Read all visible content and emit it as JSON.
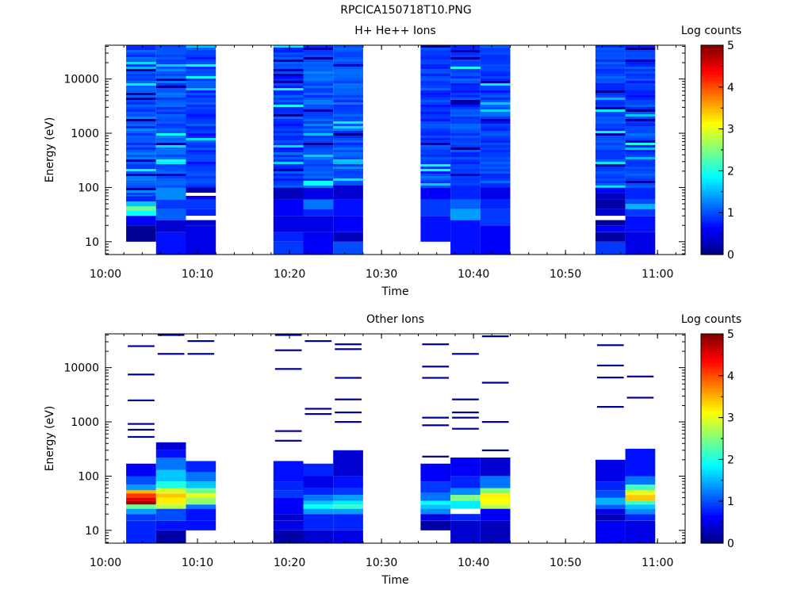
{
  "title": "RPCICA150718T10.PNG",
  "colorbar": {
    "label": "Log counts",
    "range": [
      0,
      5
    ],
    "ticks": [
      0,
      1,
      2,
      3,
      4,
      5
    ]
  },
  "chart_data": [
    {
      "type": "heatmap",
      "title": "H+ He++ Ions",
      "xlabel": "Time",
      "ylabel": "Energy (eV)",
      "xlim": [
        "10:00",
        "11:03"
      ],
      "x_ticks": [
        "10:00",
        "10:10",
        "10:20",
        "10:30",
        "10:40",
        "10:50",
        "11:00"
      ],
      "yscale": "log",
      "ylim": [
        5.8,
        42000
      ],
      "y_ticks": [
        10,
        100,
        1000,
        10000
      ],
      "z_label": "Log counts",
      "zlim": [
        0,
        5
      ],
      "columns": [
        {
          "start": "10:02:15",
          "end": "10:05:30",
          "e_min": 10,
          "low": [
            [
              10,
              20,
              0.1
            ],
            [
              20,
              30,
              0.6
            ],
            [
              30,
              38,
              1.9
            ],
            [
              38,
              45,
              2.4
            ],
            [
              45,
              55,
              1.6
            ],
            [
              55,
              70,
              0.8
            ]
          ],
          "bg": [
            1.0,
            1.2
          ]
        },
        {
          "start": "10:05:30",
          "end": "10:08:45",
          "e_min": 5.8,
          "low": [
            [
              5.8,
              15,
              0.7
            ],
            [
              15,
              25,
              0.4
            ],
            [
              25,
              40,
              1.1
            ],
            [
              40,
              60,
              0.9
            ],
            [
              60,
              100,
              1.3
            ]
          ],
          "bg": [
            1.0,
            1.2
          ]
        },
        {
          "start": "10:08:45",
          "end": "10:12:00",
          "e_min": 5.8,
          "low": [
            [
              5.8,
              20,
              0.5
            ],
            [
              20,
              25,
              0.4
            ],
            [
              30,
              40,
              0.8
            ],
            [
              40,
              60,
              0.9
            ],
            [
              60,
              70,
              0.6
            ],
            [
              80,
              100,
              0.2
            ]
          ],
          "bg": [
            0.9,
            1.1
          ]
        },
        {
          "start": "10:18:15",
          "end": "10:21:30",
          "e_min": 5.8,
          "low": [
            [
              5.8,
              10,
              0.9
            ],
            [
              10,
              15,
              0.8
            ],
            [
              15,
              30,
              0.5
            ],
            [
              30,
              60,
              0.6
            ],
            [
              60,
              100,
              0.3
            ]
          ],
          "bg": [
            0.9,
            1.1
          ]
        },
        {
          "start": "10:21:30",
          "end": "10:24:45",
          "e_min": 5.8,
          "low": [
            [
              5.8,
              15,
              0.6
            ],
            [
              15,
              30,
              0.5
            ],
            [
              30,
              40,
              0.8
            ],
            [
              40,
              60,
              1.2
            ],
            [
              60,
              100,
              0.5
            ]
          ],
          "bg": [
            1.0,
            1.2
          ]
        },
        {
          "start": "10:24:45",
          "end": "10:28:00",
          "e_min": 5.8,
          "low": [
            [
              5.8,
              10,
              1.0
            ],
            [
              10,
              15,
              0.3
            ],
            [
              15,
              30,
              0.6
            ],
            [
              30,
              60,
              0.7
            ],
            [
              60,
              110,
              0.4
            ]
          ],
          "bg": [
            1.0,
            1.2
          ]
        },
        {
          "start": "10:34:15",
          "end": "10:37:30",
          "e_min": 10,
          "low": [
            [
              10,
              30,
              0.7
            ],
            [
              30,
              60,
              0.9
            ],
            [
              60,
              100,
              0.6
            ]
          ],
          "bg": [
            0.9,
            1.1
          ]
        },
        {
          "start": "10:37:30",
          "end": "10:40:45",
          "e_min": 5.8,
          "low": [
            [
              5.8,
              25,
              0.7
            ],
            [
              25,
              40,
              1.4
            ],
            [
              40,
              60,
              1.1
            ],
            [
              60,
              100,
              0.8
            ]
          ],
          "bg": [
            0.9,
            1.1
          ]
        },
        {
          "start": "10:40:45",
          "end": "10:44:00",
          "e_min": 5.8,
          "low": [
            [
              5.8,
              20,
              0.6
            ],
            [
              20,
              40,
              0.9
            ],
            [
              40,
              60,
              0.8
            ],
            [
              60,
              100,
              0.5
            ]
          ],
          "bg": [
            0.9,
            1.1
          ]
        },
        {
          "start": "10:53:15",
          "end": "10:56:30",
          "e_min": 5.8,
          "low": [
            [
              5.8,
              10,
              0.9
            ],
            [
              10,
              15,
              0.2
            ],
            [
              15,
              20,
              0.6
            ],
            [
              20,
              25,
              0.1
            ],
            [
              30,
              40,
              0.4
            ],
            [
              40,
              60,
              0.2
            ],
            [
              60,
              80,
              0.3
            ],
            [
              80,
              100,
              0.6
            ]
          ],
          "bg": [
            0.9,
            1.1
          ]
        },
        {
          "start": "10:56:30",
          "end": "10:59:45",
          "e_min": 5.8,
          "low": [
            [
              5.8,
              15,
              0.5
            ],
            [
              15,
              30,
              0.7
            ],
            [
              30,
              40,
              0.9
            ],
            [
              40,
              50,
              1.5
            ],
            [
              50,
              60,
              1.0
            ],
            [
              60,
              100,
              0.8
            ]
          ],
          "bg": [
            0.9,
            1.1
          ]
        }
      ]
    },
    {
      "type": "heatmap",
      "title": "Other Ions",
      "xlabel": "Time",
      "ylabel": "Energy (eV)",
      "xlim": [
        "10:00",
        "11:03"
      ],
      "x_ticks": [
        "10:00",
        "10:10",
        "10:20",
        "10:30",
        "10:40",
        "10:50",
        "11:00"
      ],
      "yscale": "log",
      "ylim": [
        5.8,
        42000
      ],
      "y_ticks": [
        10,
        100,
        1000,
        10000
      ],
      "z_label": "Log counts",
      "zlim": [
        0,
        5
      ],
      "columns": [
        {
          "start": "10:02:15",
          "end": "10:05:30",
          "e_min": 5.8,
          "e_top": 170,
          "low": [
            [
              5.8,
              15,
              0.8
            ],
            [
              15,
              20,
              0.9
            ],
            [
              20,
              25,
              1.4
            ],
            [
              25,
              30,
              2.4
            ],
            [
              30,
              35,
              4.8
            ],
            [
              35,
              40,
              4.5
            ],
            [
              40,
              48,
              4.1
            ],
            [
              48,
              55,
              3.5
            ],
            [
              55,
              70,
              1.4
            ],
            [
              70,
              100,
              1.0
            ],
            [
              100,
              170,
              0.6
            ]
          ],
          "lines": [
            25000,
            7500,
            2500,
            920,
            720,
            530
          ]
        },
        {
          "start": "10:05:30",
          "end": "10:08:45",
          "e_min": 5.8,
          "e_top": 420,
          "low": [
            [
              5.8,
              10,
              0.2
            ],
            [
              10,
              15,
              0.7
            ],
            [
              15,
              25,
              1.0
            ],
            [
              25,
              30,
              2.8
            ],
            [
              30,
              40,
              3.2
            ],
            [
              40,
              48,
              3.4
            ],
            [
              48,
              60,
              2.9
            ],
            [
              60,
              80,
              2.0
            ],
            [
              80,
              130,
              1.6
            ],
            [
              130,
              220,
              1.2
            ],
            [
              220,
              300,
              0.7
            ],
            [
              300,
              420,
              0.4
            ]
          ],
          "lines": [
            40000,
            18000
          ]
        },
        {
          "start": "10:08:45",
          "end": "10:12:00",
          "e_min": 10,
          "e_top": 190,
          "low": [
            [
              10,
              15,
              0.7
            ],
            [
              15,
              25,
              0.7
            ],
            [
              25,
              30,
              1.2
            ],
            [
              30,
              40,
              2.6
            ],
            [
              40,
              48,
              3.0
            ],
            [
              48,
              60,
              2.4
            ],
            [
              60,
              80,
              1.6
            ],
            [
              80,
              120,
              1.2
            ],
            [
              120,
              190,
              0.8
            ]
          ],
          "lines": [
            31000,
            18000
          ]
        },
        {
          "start": "10:18:15",
          "end": "10:21:30",
          "e_min": 5.8,
          "e_top": 190,
          "low": [
            [
              5.8,
              10,
              0.2
            ],
            [
              10,
              15,
              0.5
            ],
            [
              15,
              20,
              0.4
            ],
            [
              20,
              40,
              0.6
            ],
            [
              40,
              55,
              0.9
            ],
            [
              55,
              80,
              0.8
            ],
            [
              80,
              190,
              0.7
            ]
          ],
          "lines": [
            40000,
            21000,
            9500,
            680,
            450
          ]
        },
        {
          "start": "10:21:30",
          "end": "10:24:45",
          "e_min": 5.8,
          "e_top": 170,
          "low": [
            [
              5.8,
              10,
              0.4
            ],
            [
              10,
              20,
              0.8
            ],
            [
              20,
              25,
              1.4
            ],
            [
              25,
              30,
              1.9
            ],
            [
              30,
              35,
              1.6
            ],
            [
              35,
              45,
              1.2
            ],
            [
              45,
              60,
              0.8
            ],
            [
              60,
              100,
              0.5
            ],
            [
              100,
              170,
              0.8
            ]
          ],
          "lines": [
            31000,
            1750,
            1400
          ]
        },
        {
          "start": "10:24:45",
          "end": "10:28:00",
          "e_min": 5.8,
          "e_top": 300,
          "low": [
            [
              5.8,
              10,
              0.5
            ],
            [
              10,
              20,
              0.8
            ],
            [
              20,
              25,
              1.4
            ],
            [
              25,
              30,
              2.1
            ],
            [
              30,
              35,
              1.8
            ],
            [
              35,
              45,
              1.4
            ],
            [
              45,
              60,
              0.9
            ],
            [
              60,
              100,
              0.7
            ],
            [
              100,
              300,
              0.4
            ]
          ],
          "lines": [
            27000,
            22000,
            6500,
            2600,
            1500,
            1000
          ]
        },
        {
          "start": "10:34:15",
          "end": "10:37:30",
          "e_min": 10,
          "e_top": 170,
          "low": [
            [
              10,
              15,
              0.2
            ],
            [
              15,
              20,
              0.5
            ],
            [
              20,
              25,
              1.3
            ],
            [
              25,
              30,
              1.6
            ],
            [
              30,
              35,
              1.9
            ],
            [
              35,
              50,
              1.2
            ],
            [
              50,
              80,
              0.9
            ],
            [
              80,
              170,
              0.6
            ]
          ],
          "lines": [
            27000,
            10500,
            6500,
            1200,
            870,
            230
          ]
        },
        {
          "start": "10:37:30",
          "end": "10:40:45",
          "e_min": 5.8,
          "e_top": 220,
          "low": [
            [
              5.8,
              15,
              0.4
            ],
            [
              15,
              20,
              0.8
            ],
            [
              25,
              35,
              1.8
            ],
            [
              35,
              45,
              2.5
            ],
            [
              45,
              60,
              1.3
            ],
            [
              60,
              100,
              0.8
            ],
            [
              100,
              220,
              0.6
            ]
          ],
          "lines": [
            18000,
            2600,
            1500,
            1200,
            750
          ]
        },
        {
          "start": "10:40:45",
          "end": "10:44:00",
          "e_min": 5.8,
          "e_top": 220,
          "low": [
            [
              5.8,
              15,
              0.3
            ],
            [
              15,
              25,
              0.6
            ],
            [
              25,
              30,
              2.8
            ],
            [
              30,
              40,
              3.1
            ],
            [
              40,
              48,
              3.2
            ],
            [
              48,
              60,
              2.5
            ],
            [
              60,
              100,
              1.2
            ],
            [
              100,
              220,
              0.4
            ]
          ],
          "lines": [
            38000,
            5300,
            1000,
            300
          ]
        },
        {
          "start": "10:53:15",
          "end": "10:56:30",
          "e_min": 5.8,
          "e_top": 200,
          "low": [
            [
              5.8,
              15,
              0.6
            ],
            [
              15,
              20,
              0.3
            ],
            [
              20,
              25,
              0.5
            ],
            [
              25,
              30,
              1.1
            ],
            [
              30,
              40,
              1.5
            ],
            [
              40,
              55,
              1.0
            ],
            [
              55,
              80,
              0.8
            ],
            [
              80,
              200,
              0.5
            ]
          ],
          "lines": [
            26000,
            11000,
            6600,
            1900
          ]
        },
        {
          "start": "10:56:30",
          "end": "10:59:45",
          "e_min": 5.8,
          "e_top": 320,
          "low": [
            [
              5.8,
              15,
              0.5
            ],
            [
              15,
              20,
              0.8
            ],
            [
              20,
              25,
              1.3
            ],
            [
              25,
              30,
              1.6
            ],
            [
              30,
              35,
              2.2
            ],
            [
              35,
              45,
              3.4
            ],
            [
              45,
              55,
              3.0
            ],
            [
              55,
              70,
              2.2
            ],
            [
              70,
              100,
              1.2
            ],
            [
              100,
              320,
              0.7
            ]
          ],
          "lines": [
            6900,
            2800
          ]
        }
      ]
    }
  ]
}
